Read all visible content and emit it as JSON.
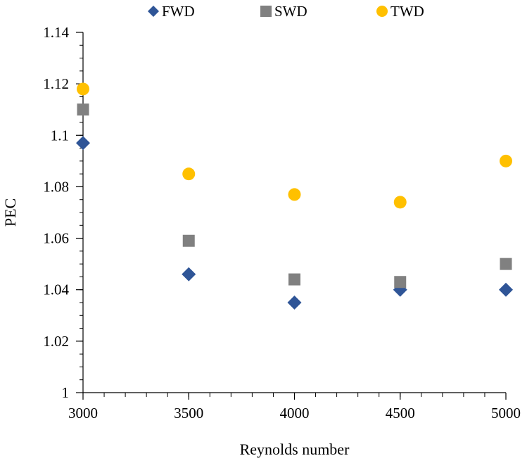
{
  "chart_data": {
    "type": "scatter",
    "title": "",
    "xlabel": "Reynolds number",
    "ylabel": "PEC",
    "xlim": [
      3000,
      5000
    ],
    "ylim": [
      1.0,
      1.14
    ],
    "x_ticks": [
      3000,
      3500,
      4000,
      4500,
      5000
    ],
    "x_tick_labels": [
      "3000",
      "3500",
      "4000",
      "4500",
      "5000"
    ],
    "y_ticks": [
      1.0,
      1.02,
      1.04,
      1.06,
      1.08,
      1.1,
      1.12,
      1.14
    ],
    "y_tick_labels": [
      "1",
      "1.02",
      "1.04",
      "1.06",
      "1.08",
      "1.1",
      "1.12",
      "1.14"
    ],
    "y_minor_step": 0.005,
    "x_minor_step": 100,
    "grid": false,
    "legend_position": "top",
    "series": [
      {
        "name": "FWD",
        "marker": "diamond",
        "color": "#2F5597",
        "x": [
          3000,
          3500,
          4000,
          4500,
          5000
        ],
        "y": [
          1.097,
          1.046,
          1.035,
          1.04,
          1.04
        ]
      },
      {
        "name": "SWD",
        "marker": "square",
        "color": "#808080",
        "x": [
          3000,
          3500,
          4000,
          4500,
          5000
        ],
        "y": [
          1.11,
          1.059,
          1.044,
          1.043,
          1.05
        ]
      },
      {
        "name": "TWD",
        "marker": "circle",
        "color": "#FFC000",
        "x": [
          3000,
          3500,
          4000,
          4500,
          5000
        ],
        "y": [
          1.118,
          1.085,
          1.077,
          1.074,
          1.09
        ]
      }
    ]
  }
}
